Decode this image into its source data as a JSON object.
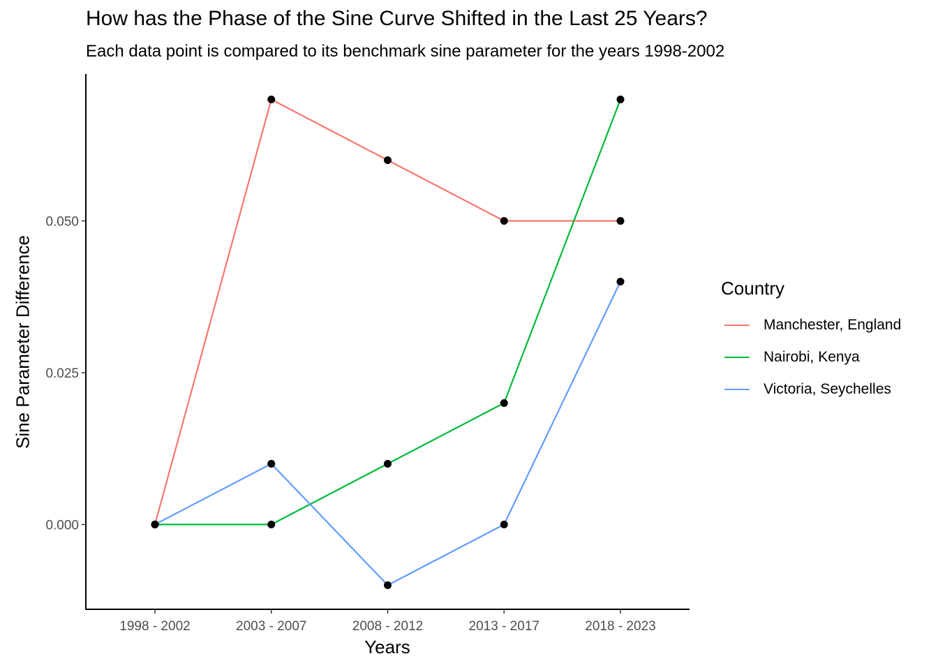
{
  "chart_data": {
    "type": "line",
    "title": "How has the Phase of the Sine Curve Shifted in the Last 25 Years?",
    "subtitle": "Each data point is compared to its benchmark sine parameter for the years 1998-2002",
    "xlabel": "Years",
    "ylabel": "Sine Parameter Difference",
    "categories": [
      "1998 - 2002",
      "2003 - 2007",
      "2008 - 2012",
      "2013 - 2017",
      "2018 - 2023"
    ],
    "yticks": [
      0.0,
      0.025,
      0.05
    ],
    "ytick_labels": [
      "0.000",
      "0.025",
      "0.050"
    ],
    "ylim": [
      -0.014,
      0.074
    ],
    "grid": false,
    "legend": {
      "title": "Country",
      "position": "right"
    },
    "point_color": "#000000",
    "series": [
      {
        "name": "Manchester, England",
        "color": "#F8766D",
        "values": [
          0.0,
          0.07,
          0.06,
          0.05,
          0.05
        ]
      },
      {
        "name": "Nairobi, Kenya",
        "color": "#00BA38",
        "values": [
          0.0,
          0.0,
          0.01,
          0.02,
          0.07
        ]
      },
      {
        "name": "Victoria, Seychelles",
        "color": "#619CFF",
        "values": [
          0.0,
          0.01,
          -0.01,
          0.0,
          0.04
        ]
      }
    ]
  }
}
